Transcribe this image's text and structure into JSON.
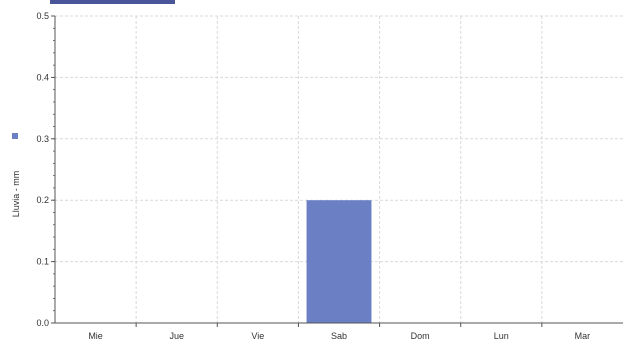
{
  "chart_data": {
    "type": "bar",
    "categories": [
      "Mie",
      "Jue",
      "Vie",
      "Sab",
      "Dom",
      "Lun",
      "Mar"
    ],
    "series": [
      {
        "values": [
          0,
          0,
          0,
          0.2,
          0,
          0,
          0
        ],
        "color": "#6b7fc4"
      }
    ],
    "ylabel": "Lluvia - mm",
    "xlabel": "",
    "ylim": [
      0,
      0.5
    ],
    "yticks": [
      "0.0",
      "0.1",
      "0.2",
      "0.3",
      "0.4",
      "0.5"
    ],
    "grid": true,
    "legend_placement": "left",
    "colors": {
      "bar": "#6b7fc4",
      "legend_marker": "#6b7fc4",
      "grid": "#d9d9d9",
      "axis": "#555555"
    }
  }
}
